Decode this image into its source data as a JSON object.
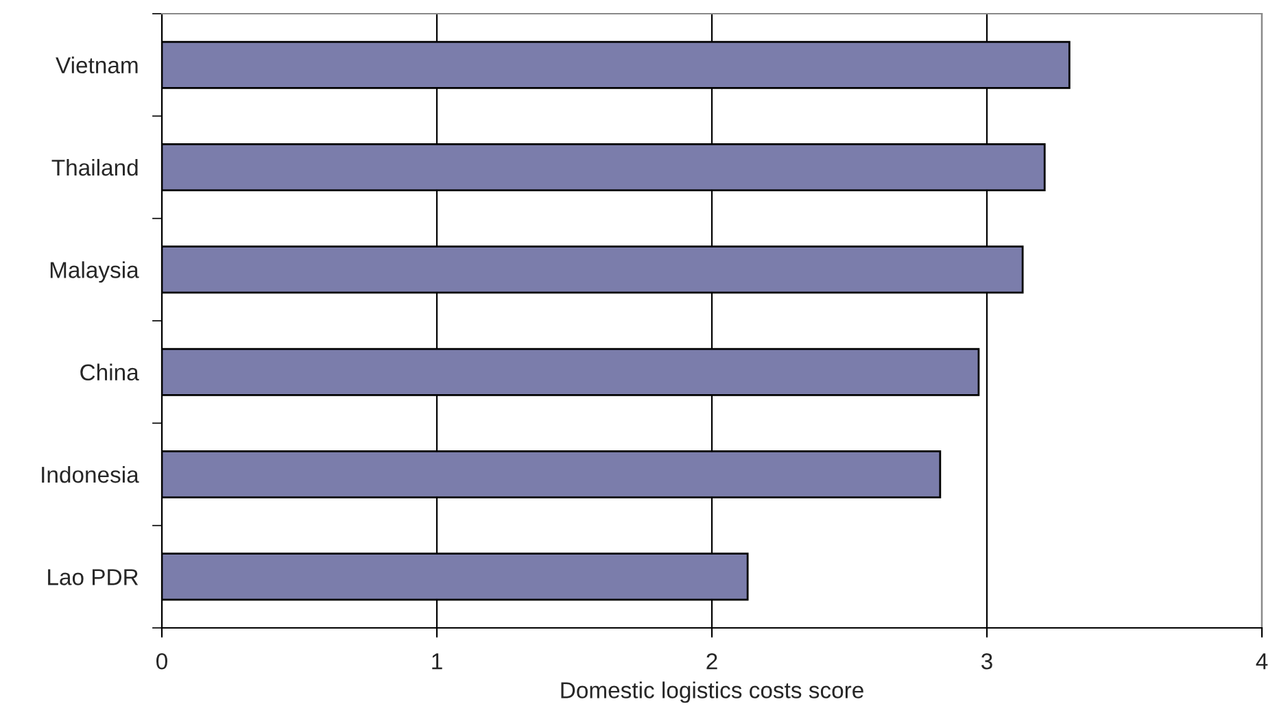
{
  "chart_data": {
    "type": "bar",
    "orientation": "horizontal",
    "xlabel": "Domestic logistics costs score",
    "categories": [
      "Vietnam",
      "Thailand",
      "Malaysia",
      "China",
      "Indonesia",
      "Lao PDR"
    ],
    "values": [
      3.3,
      3.21,
      3.13,
      2.97,
      2.83,
      2.13
    ],
    "color": "#7b7dab",
    "xlim": [
      0,
      4
    ],
    "xticks": [
      0,
      1,
      2,
      3,
      4
    ],
    "grid": "x"
  }
}
